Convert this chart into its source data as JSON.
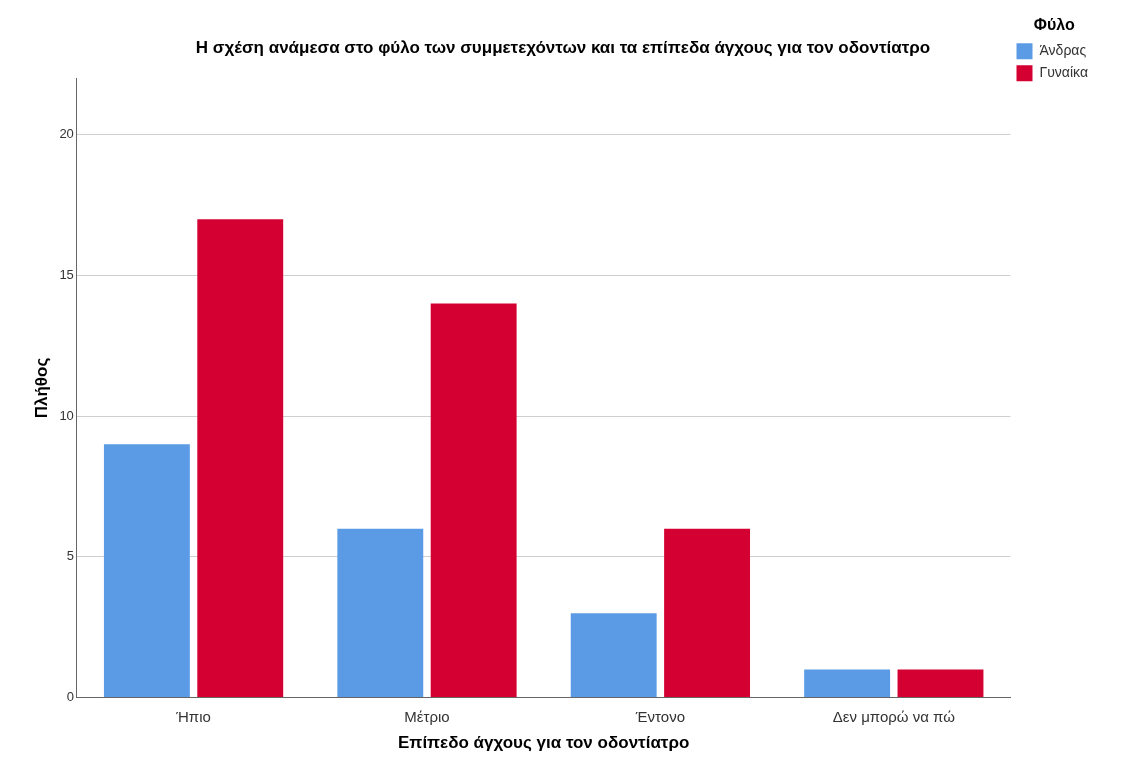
{
  "chart_data": {
    "type": "bar",
    "title": "Η σχέση ανάμεσα στο φύλο των συμμετεχόντων και τα επίπεδα άγχους για τον οδοντίατρο",
    "xlabel": "Επίπεδο άγχους για τον οδοντίατρο",
    "ylabel": "Πλήθος",
    "legend_title": "Φύλο",
    "categories": [
      "Ήπιο",
      "Μέτριο",
      "Έντονο",
      "Δεν μπορώ να πώ"
    ],
    "series": [
      {
        "name": "Άνδρας",
        "color": "#5b9be6",
        "values": [
          9,
          6,
          3,
          1
        ]
      },
      {
        "name": "Γυναίκα",
        "color": "#d50032",
        "values": [
          17,
          14,
          6,
          1
        ]
      }
    ],
    "ylim": [
      0,
      22
    ],
    "yticks": [
      0,
      5,
      10,
      15,
      20
    ],
    "grid": "y",
    "legend": "top right"
  }
}
